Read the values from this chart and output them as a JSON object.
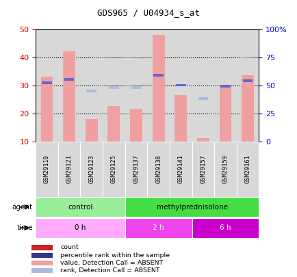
{
  "title": "GDS965 / U04934_s_at",
  "samples": [
    "GSM29119",
    "GSM29121",
    "GSM29123",
    "GSM29125",
    "GSM29137",
    "GSM29138",
    "GSM29141",
    "GSM29157",
    "GSM29159",
    "GSM29161"
  ],
  "bar_values": [
    33,
    42,
    18,
    22.5,
    21.5,
    48,
    26.5,
    11,
    29.5,
    33.5
  ],
  "rank_pct": [
    52,
    55,
    45,
    48,
    48,
    59,
    50,
    38,
    49,
    54
  ],
  "rank_square_absent": [
    false,
    false,
    true,
    true,
    true,
    false,
    false,
    true,
    false,
    false
  ],
  "ylim_left": [
    10,
    50
  ],
  "ylim_right": [
    0,
    100
  ],
  "yticks_left": [
    10,
    20,
    30,
    40,
    50
  ],
  "ytick_labels_left": [
    "10",
    "20",
    "30",
    "40",
    "50"
  ],
  "yticks_right": [
    0,
    25,
    50,
    75,
    100
  ],
  "ytick_labels_right": [
    "0",
    "25",
    "50",
    "75",
    "100%"
  ],
  "bar_color": "#f0a0a0",
  "rank_color_present": "#6666cc",
  "rank_color_absent": "#aabbdd",
  "agent_groups": [
    {
      "label": "control",
      "start": 0,
      "end": 4,
      "color": "#99ee99"
    },
    {
      "label": "methylprednisolone",
      "start": 4,
      "end": 10,
      "color": "#44dd44"
    }
  ],
  "time_groups": [
    {
      "label": "0 h",
      "start": 0,
      "end": 4,
      "color": "#ffaaff"
    },
    {
      "label": "2 h",
      "start": 4,
      "end": 7,
      "color": "#ee44ee"
    },
    {
      "label": "6 h",
      "start": 7,
      "end": 10,
      "color": "#cc00cc"
    }
  ],
  "legend_items": [
    {
      "label": "count",
      "color": "#cc2222"
    },
    {
      "label": "percentile rank within the sample",
      "color": "#333388"
    },
    {
      "label": "value, Detection Call = ABSENT",
      "color": "#f0a0a0"
    },
    {
      "label": "rank, Detection Call = ABSENT",
      "color": "#aabbdd"
    }
  ],
  "col_bg_color": "#d8d8d8",
  "left_tick_color": "#cc0000",
  "right_tick_color": "#0000cc",
  "grid_color": "black",
  "grid_yticks": [
    20,
    30,
    40
  ]
}
